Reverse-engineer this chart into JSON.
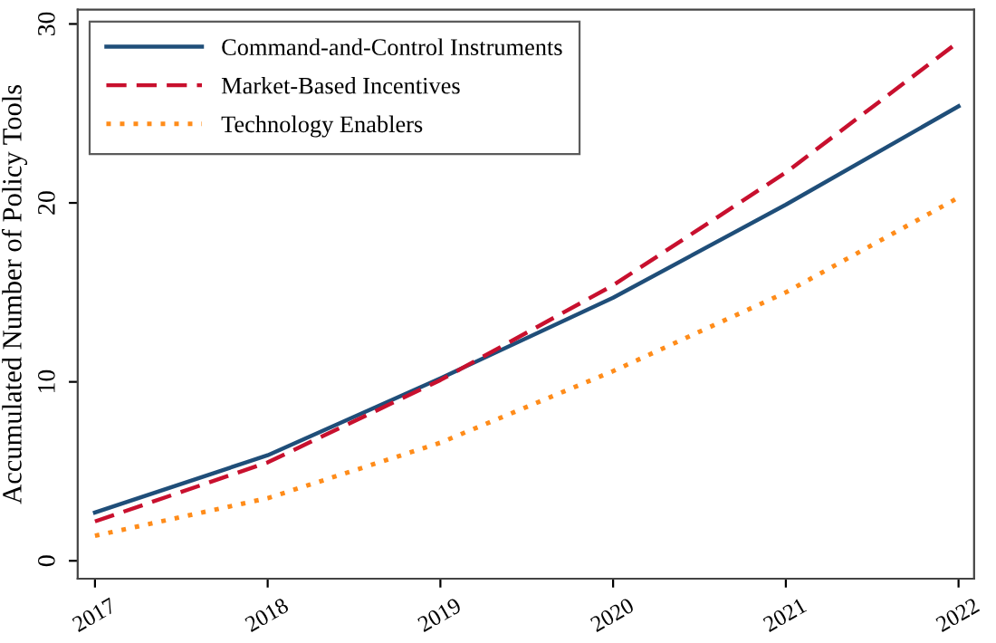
{
  "chart_data": {
    "type": "line",
    "ylabel": "Accumulated Number of Policy Tools",
    "x": [
      2017,
      2018,
      2019,
      2020,
      2021,
      2022
    ],
    "series": [
      {
        "name": "Command-and-Control Instruments",
        "color": "#1f4e79",
        "line_style": "solid",
        "values": [
          2.7,
          5.9,
          10.2,
          14.7,
          19.9,
          25.4
        ]
      },
      {
        "name": "Market-Based Incentives",
        "color": "#c8102e",
        "line_style": "dashed",
        "values": [
          2.2,
          5.5,
          10.1,
          15.4,
          21.7,
          29.0
        ]
      },
      {
        "name": "Technology Enablers",
        "color": "#ff8c1a",
        "line_style": "dotted",
        "values": [
          1.4,
          3.5,
          6.6,
          10.6,
          15.0,
          20.3
        ]
      }
    ],
    "xlim": [
      2016.9,
      2022.09
    ],
    "xticks": [
      2017,
      2018,
      2019,
      2020,
      2021,
      2022
    ],
    "ylim": [
      -1,
      30.8
    ],
    "yticks": [
      0,
      10,
      20,
      30
    ],
    "grid": false,
    "legend": "top left",
    "marker": "none"
  }
}
